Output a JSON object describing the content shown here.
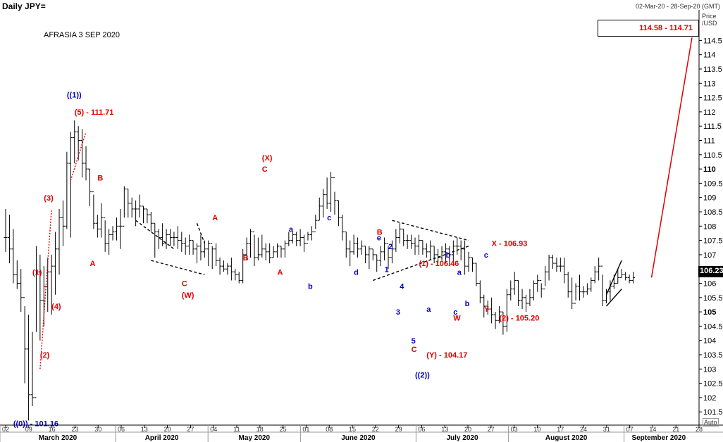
{
  "header": {
    "title": "Daily JPY=",
    "date_range": "02-Mar-20 - 28-Sep-20 (GMT)"
  },
  "annotation_title": "AFRASIA 3 SEP 2020",
  "target_box": "114.58 - 114.71",
  "price_axis": {
    "title": "Price",
    "unit": "/USD",
    "mode": "Auto",
    "ticks": [
      "101.5",
      "102",
      "102.5",
      "103",
      "103.5",
      "104",
      "104.5",
      "105",
      "105.5",
      "106",
      "106.5",
      "107",
      "107.5",
      "108",
      "108.5",
      "109",
      "109.5",
      "110",
      "110.5",
      "111",
      "111.5",
      "112",
      "112.5",
      "113",
      "113.5",
      "114",
      "114.5"
    ],
    "bold_ticks": [
      "105",
      "110"
    ],
    "last_price": "106.23"
  },
  "colors": {
    "bar": "#000000",
    "red": "#e00000",
    "blue": "#0000cc",
    "grid": "#c8c8c8"
  },
  "chart_data": {
    "type": "ohlc",
    "title": "Daily JPY=",
    "ylim": [
      101,
      115
    ],
    "x_ticks": [
      "02",
      "09",
      "16",
      "23",
      "30",
      "06",
      "13",
      "20",
      "27",
      "04",
      "11",
      "18",
      "25",
      "01",
      "08",
      "15",
      "22",
      "29",
      "06",
      "13",
      "20",
      "27",
      "03",
      "10",
      "17",
      "24",
      "31",
      "07",
      "14",
      "21",
      "28"
    ],
    "months": [
      "March 2020",
      "April 2020",
      "May 2020",
      "June 2020",
      "July 2020",
      "August 2020",
      "September 2020"
    ],
    "bars_hlc": [
      [
        108.6,
        107.1,
        107.6
      ],
      [
        108.4,
        106.7,
        107.2
      ],
      [
        107.9,
        106.0,
        106.3
      ],
      [
        106.8,
        105.8,
        106.0
      ],
      [
        106.5,
        105.0,
        105.5
      ],
      [
        105.2,
        102.5,
        103.7
      ],
      [
        104.9,
        101.2,
        102.1
      ],
      [
        104.3,
        101.7,
        102.0
      ],
      [
        107.3,
        104.3,
        106.4
      ],
      [
        107.0,
        104.0,
        105.4
      ],
      [
        106.6,
        104.5,
        105.9
      ],
      [
        106.9,
        105.0,
        106.4
      ],
      [
        107.0,
        104.9,
        106.6
      ],
      [
        107.8,
        105.6,
        107.2
      ],
      [
        108.6,
        106.3,
        108.3
      ],
      [
        108.9,
        107.3,
        108.0
      ],
      [
        110.6,
        107.9,
        110.2
      ],
      [
        111.3,
        107.6,
        111.1
      ],
      [
        111.7,
        110.2,
        111.3
      ],
      [
        111.5,
        110.3,
        111.0
      ],
      [
        111.4,
        109.7,
        110.2
      ],
      [
        110.8,
        109.6,
        110.0
      ],
      [
        110.0,
        108.7,
        109.2
      ],
      [
        109.1,
        107.9,
        108.1
      ],
      [
        108.4,
        107.6,
        107.9
      ],
      [
        108.8,
        107.6,
        108.3
      ],
      [
        108.2,
        107.1,
        107.4
      ],
      [
        107.9,
        107.0,
        107.7
      ],
      [
        108.0,
        107.5,
        107.8
      ],
      [
        108.3,
        107.5,
        108.0
      ],
      [
        108.6,
        107.2,
        108.0
      ],
      [
        109.4,
        108.3,
        109.3
      ],
      [
        109.3,
        108.3,
        108.8
      ],
      [
        109.0,
        108.3,
        108.6
      ],
      [
        108.9,
        108.0,
        108.6
      ],
      [
        109.1,
        108.3,
        108.7
      ],
      [
        108.7,
        108.1,
        108.6
      ],
      [
        108.6,
        108.1,
        108.4
      ],
      [
        108.5,
        107.8,
        108.1
      ],
      [
        108.1,
        106.9,
        107.8
      ],
      [
        107.9,
        107.2,
        107.6
      ],
      [
        108.1,
        107.3,
        107.4
      ],
      [
        107.9,
        107.2,
        107.7
      ],
      [
        107.9,
        107.3,
        107.6
      ],
      [
        107.8,
        107.3,
        107.6
      ],
      [
        108.0,
        107.2,
        107.5
      ],
      [
        107.8,
        107.1,
        107.4
      ],
      [
        107.6,
        107.0,
        107.3
      ],
      [
        107.7,
        107.0,
        107.5
      ],
      [
        107.5,
        107.0,
        107.2
      ],
      [
        107.4,
        106.7,
        107.3
      ],
      [
        107.7,
        106.8,
        107.1
      ],
      [
        107.5,
        106.9,
        107.2
      ],
      [
        107.5,
        106.6,
        107.4
      ],
      [
        107.3,
        106.5,
        107.2
      ],
      [
        107.4,
        106.6,
        106.8
      ],
      [
        106.9,
        106.3,
        106.6
      ],
      [
        106.8,
        106.4,
        106.5
      ],
      [
        106.7,
        106.3,
        106.6
      ],
      [
        106.9,
        106.1,
        106.4
      ],
      [
        106.5,
        106.1,
        106.3
      ],
      [
        106.4,
        106.0,
        106.1
      ],
      [
        107.2,
        106.0,
        107.0
      ],
      [
        107.6,
        106.8,
        107.4
      ],
      [
        107.9,
        106.9,
        107.8
      ],
      [
        107.7,
        106.6,
        106.9
      ],
      [
        107.6,
        106.8,
        107.0
      ],
      [
        107.7,
        106.9,
        107.2
      ],
      [
        107.4,
        106.8,
        107.1
      ],
      [
        107.4,
        106.7,
        106.9
      ],
      [
        107.3,
        106.9,
        107.1
      ],
      [
        107.4,
        106.9,
        107.3
      ],
      [
        107.3,
        106.9,
        107.2
      ],
      [
        107.5,
        106.9,
        107.4
      ],
      [
        107.8,
        107.3,
        107.5
      ],
      [
        107.8,
        107.4,
        107.7
      ],
      [
        107.8,
        107.3,
        107.5
      ],
      [
        107.9,
        107.3,
        107.6
      ],
      [
        107.7,
        107.1,
        107.4
      ],
      [
        107.8,
        107.5,
        107.7
      ],
      [
        108.0,
        107.5,
        107.8
      ],
      [
        108.4,
        107.9,
        108.2
      ],
      [
        109.0,
        108.2,
        108.7
      ],
      [
        109.3,
        108.3,
        109.1
      ],
      [
        109.7,
        108.6,
        108.8
      ],
      [
        109.9,
        108.5,
        109.7
      ],
      [
        109.2,
        108.4,
        108.9
      ],
      [
        108.9,
        108.0,
        108.3
      ],
      [
        108.4,
        107.5,
        107.8
      ],
      [
        107.8,
        106.9,
        107.2
      ],
      [
        107.5,
        106.6,
        107.1
      ],
      [
        107.7,
        107.0,
        107.4
      ],
      [
        107.6,
        106.9,
        107.2
      ],
      [
        107.5,
        107.0,
        107.3
      ],
      [
        107.3,
        106.7,
        107.0
      ],
      [
        107.3,
        106.5,
        107.2
      ],
      [
        107.2,
        106.8,
        107.0
      ],
      [
        107.0,
        106.4,
        106.8
      ],
      [
        107.3,
        106.6,
        107.1
      ],
      [
        107.6,
        106.8,
        107.4
      ],
      [
        107.3,
        106.5,
        106.9
      ],
      [
        107.5,
        106.7,
        107.2
      ],
      [
        107.9,
        107.1,
        107.6
      ],
      [
        108.1,
        107.4,
        107.9
      ],
      [
        107.9,
        107.3,
        107.5
      ],
      [
        107.7,
        107.2,
        107.5
      ],
      [
        107.7,
        107.2,
        107.4
      ],
      [
        107.6,
        107.0,
        107.3
      ],
      [
        107.7,
        107.0,
        107.5
      ],
      [
        107.5,
        107.0,
        107.2
      ],
      [
        107.4,
        106.9,
        107.1
      ],
      [
        107.5,
        106.8,
        107.3
      ],
      [
        107.3,
        106.7,
        107.0
      ],
      [
        107.2,
        106.7,
        106.9
      ],
      [
        107.3,
        106.8,
        107.1
      ],
      [
        107.4,
        106.7,
        107.2
      ],
      [
        107.3,
        106.6,
        107.0
      ],
      [
        107.5,
        106.7,
        107.3
      ],
      [
        107.6,
        107.0,
        107.3
      ],
      [
        107.5,
        106.8,
        107.2
      ],
      [
        107.5,
        106.3,
        106.6
      ],
      [
        107.1,
        106.4,
        106.9
      ],
      [
        106.9,
        106.4,
        106.7
      ],
      [
        106.7,
        105.9,
        106.0
      ],
      [
        106.1,
        105.3,
        105.5
      ],
      [
        105.6,
        104.8,
        105.2
      ],
      [
        105.4,
        104.9,
        105.1
      ],
      [
        105.5,
        104.6,
        104.9
      ],
      [
        105.0,
        104.4,
        104.7
      ],
      [
        105.2,
        104.6,
        105.0
      ],
      [
        105.0,
        104.2,
        104.5
      ],
      [
        105.8,
        104.3,
        105.6
      ],
      [
        106.1,
        105.4,
        105.8
      ],
      [
        106.4,
        105.6,
        106.1
      ],
      [
        106.1,
        105.2,
        105.4
      ],
      [
        105.8,
        105.1,
        105.5
      ],
      [
        105.6,
        105.0,
        105.3
      ],
      [
        105.8,
        105.2,
        105.5
      ],
      [
        106.1,
        105.4,
        106.0
      ],
      [
        106.3,
        105.7,
        106.1
      ],
      [
        106.0,
        105.5,
        105.8
      ],
      [
        106.6,
        105.9,
        106.4
      ],
      [
        107.0,
        106.1,
        106.9
      ],
      [
        107.0,
        106.5,
        106.7
      ],
      [
        106.9,
        106.4,
        106.6
      ],
      [
        106.9,
        106.4,
        106.6
      ],
      [
        106.9,
        106.0,
        106.3
      ],
      [
        106.4,
        105.5,
        105.7
      ],
      [
        106.2,
        105.1,
        105.3
      ],
      [
        106.0,
        105.4,
        105.9
      ],
      [
        106.3,
        105.4,
        105.7
      ],
      [
        105.9,
        105.5,
        105.7
      ],
      [
        106.0,
        105.6,
        105.8
      ],
      [
        106.2,
        105.7,
        106.1
      ],
      [
        106.6,
        106.0,
        106.4
      ],
      [
        106.9,
        106.1,
        106.6
      ],
      [
        106.3,
        105.2,
        105.4
      ],
      [
        105.8,
        105.3,
        105.7
      ],
      [
        106.1,
        105.4,
        105.9
      ],
      [
        106.3,
        105.8,
        106.0
      ],
      [
        106.5,
        106.0,
        106.2
      ],
      [
        106.5,
        106.2,
        106.3
      ],
      [
        106.4,
        106.1,
        106.2
      ],
      [
        106.3,
        106.0,
        106.1
      ],
      [
        106.4,
        106.0,
        106.2
      ]
    ],
    "projection": {
      "from": 106.2,
      "to": 114.6
    },
    "labels": [
      {
        "text": "((1))",
        "color": "blue",
        "price": 112.5,
        "bar": 16
      },
      {
        "text": "(5) - 111.71",
        "color": "red",
        "price": 111.9,
        "bar": 18
      },
      {
        "text": "B",
        "color": "red",
        "price": 109.6,
        "bar": 24
      },
      {
        "text": "A",
        "color": "red",
        "price": 106.6,
        "bar": 22
      },
      {
        "text": "(3)",
        "color": "red",
        "price": 108.9,
        "bar": 10
      },
      {
        "text": "(1)",
        "color": "red",
        "price": 106.3,
        "bar": 7
      },
      {
        "text": "(4)",
        "color": "red",
        "price": 105.1,
        "bar": 12
      },
      {
        "text": "(2)",
        "color": "red",
        "price": 103.4,
        "bar": 9
      },
      {
        "text": "((0)) - 101.16",
        "color": "blue",
        "price": 101.0,
        "bar": 2
      },
      {
        "text": "C",
        "color": "red",
        "price": 105.9,
        "bar": 46
      },
      {
        "text": "(W)",
        "color": "red",
        "price": 105.5,
        "bar": 46
      },
      {
        "text": "A",
        "color": "red",
        "price": 108.2,
        "bar": 54
      },
      {
        "text": "B",
        "color": "red",
        "price": 106.8,
        "bar": 62
      },
      {
        "text": "(X)",
        "color": "red",
        "price": 110.3,
        "bar": 67
      },
      {
        "text": "C",
        "color": "red",
        "price": 109.9,
        "bar": 67
      },
      {
        "text": "A",
        "color": "red",
        "price": 106.3,
        "bar": 71
      },
      {
        "text": "a",
        "color": "blue",
        "price": 107.8,
        "bar": 74
      },
      {
        "text": "b",
        "color": "blue",
        "price": 105.8,
        "bar": 79
      },
      {
        "text": "c",
        "color": "blue",
        "price": 108.2,
        "bar": 84
      },
      {
        "text": "d",
        "color": "blue",
        "price": 106.3,
        "bar": 91
      },
      {
        "text": "B",
        "color": "red",
        "price": 107.7,
        "bar": 97
      },
      {
        "text": "e",
        "color": "blue",
        "price": 107.5,
        "bar": 97
      },
      {
        "text": "2",
        "color": "blue",
        "price": 107.2,
        "bar": 100
      },
      {
        "text": "1",
        "color": "blue",
        "price": 106.4,
        "bar": 99
      },
      {
        "text": "4",
        "color": "blue",
        "price": 105.8,
        "bar": 103
      },
      {
        "text": "3",
        "color": "blue",
        "price": 104.9,
        "bar": 102
      },
      {
        "text": "5",
        "color": "blue",
        "price": 103.9,
        "bar": 106
      },
      {
        "text": "C",
        "color": "red",
        "price": 103.6,
        "bar": 106
      },
      {
        "text": "(Y) - 104.17",
        "color": "red",
        "price": 103.4,
        "bar": 110
      },
      {
        "text": "((2))",
        "color": "blue",
        "price": 102.7,
        "bar": 107
      },
      {
        "text": "(1) - 106.46",
        "color": "red",
        "price": 106.6,
        "bar": 108
      },
      {
        "text": "a",
        "color": "blue",
        "price": 105.0,
        "bar": 110
      },
      {
        "text": "b",
        "color": "blue",
        "price": 106.9,
        "bar": 115
      },
      {
        "text": "a",
        "color": "blue",
        "price": 106.3,
        "bar": 118
      },
      {
        "text": "c",
        "color": "blue",
        "price": 104.9,
        "bar": 117
      },
      {
        "text": "W",
        "color": "red",
        "price": 104.7,
        "bar": 117
      },
      {
        "text": "b",
        "color": "blue",
        "price": 105.2,
        "bar": 120
      },
      {
        "text": "X - 106.93",
        "color": "red",
        "price": 107.3,
        "bar": 127
      },
      {
        "text": "c",
        "color": "blue",
        "price": 106.9,
        "bar": 125
      },
      {
        "text": "Y",
        "color": "red",
        "price": 105.0,
        "bar": 125
      },
      {
        "text": "(2) - 105.20",
        "color": "red",
        "price": 104.7,
        "bar": 129
      }
    ]
  }
}
